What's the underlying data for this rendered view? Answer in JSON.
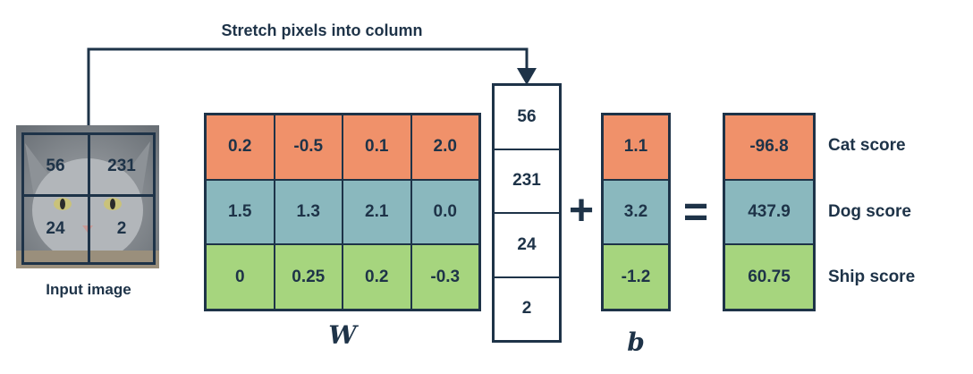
{
  "diagram": {
    "title": "Stretch pixels into column",
    "input_pixels": [
      "56",
      "231",
      "24",
      "2"
    ],
    "input_caption": "Input image",
    "weights": [
      [
        "0.2",
        "-0.5",
        "0.1",
        "2.0"
      ],
      [
        "1.5",
        "1.3",
        "2.1",
        "0.0"
      ],
      [
        "0",
        "0.25",
        "0.2",
        "-0.3"
      ]
    ],
    "weights_label": "W",
    "column": [
      "56",
      "231",
      "24",
      "2"
    ],
    "plus": "+",
    "bias": [
      "1.1",
      "3.2",
      "-1.2"
    ],
    "bias_label": "b",
    "equals": "=",
    "scores": [
      "-96.8",
      "437.9",
      "60.75"
    ],
    "score_labels": [
      "Cat score",
      "Dog score",
      "Ship score"
    ],
    "colors": {
      "row_cat": "#f0916a",
      "row_dog": "#8ab8be",
      "row_ship": "#a6d57e",
      "ink": "#1e3348"
    }
  }
}
